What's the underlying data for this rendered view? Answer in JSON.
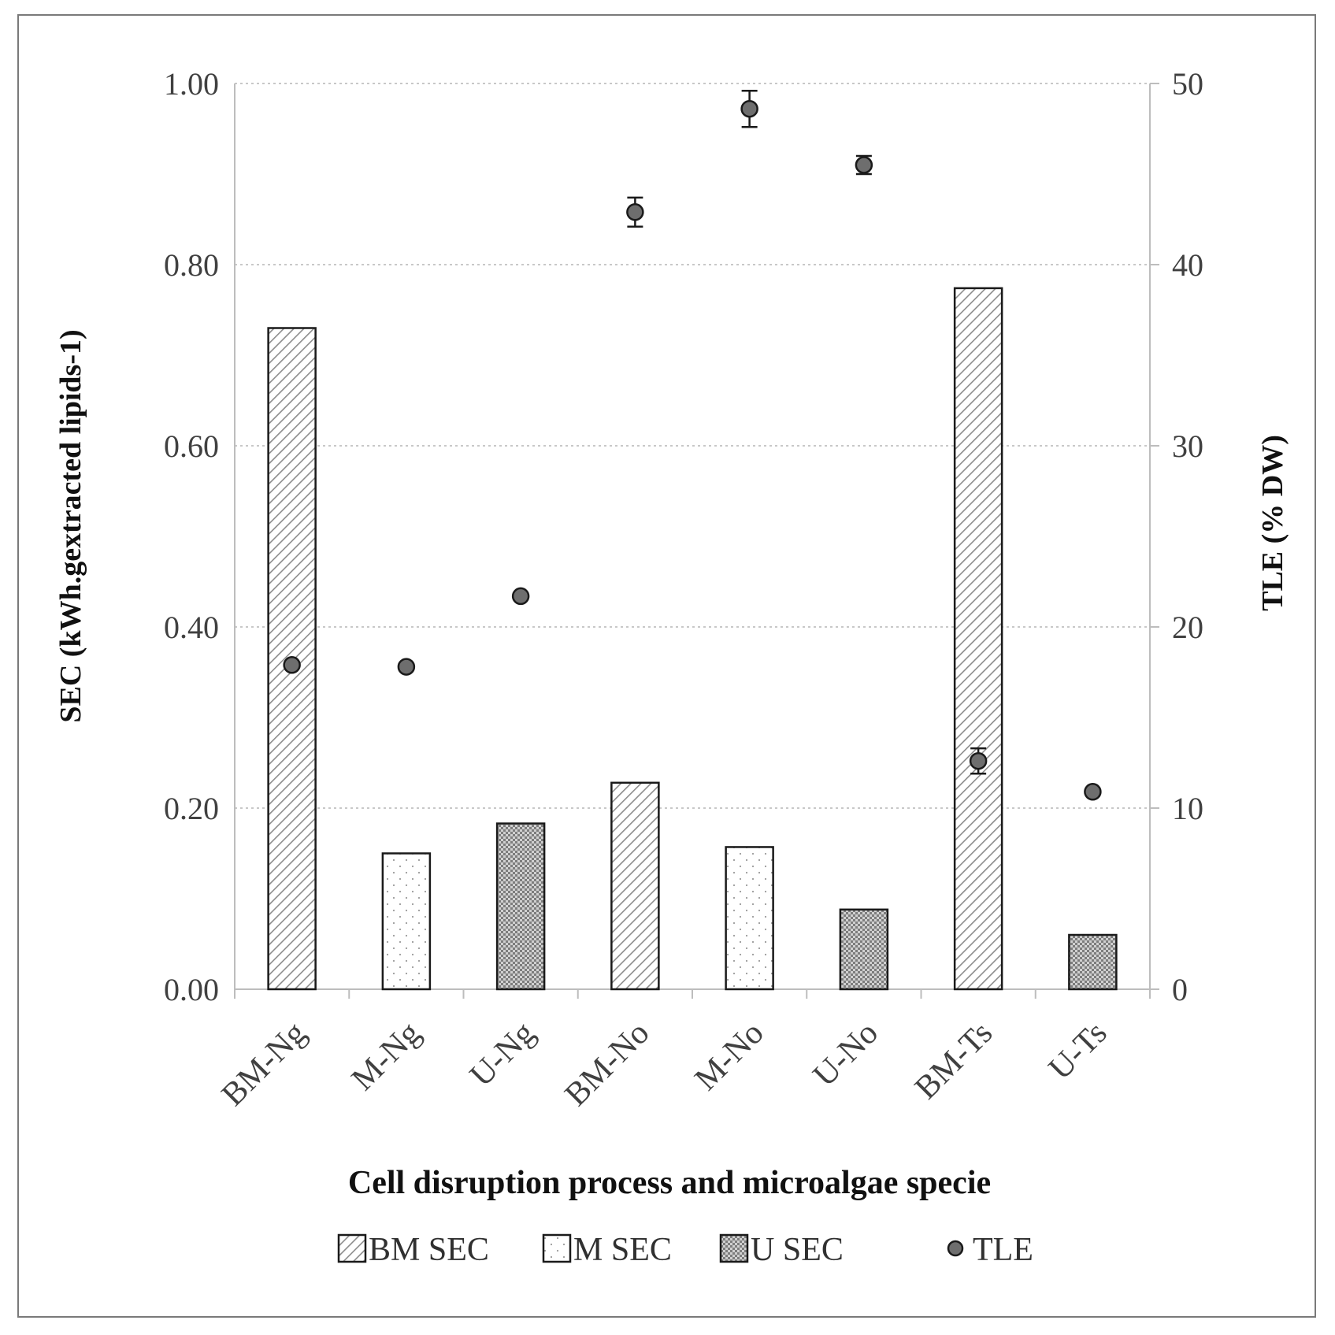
{
  "chart_data": {
    "type": "bar",
    "title": "",
    "xlabel": "Cell disruption process and microalgae specie",
    "ylabel": "SEC (kWh.gextracted lipids-1)",
    "y2label": "TLE (% DW)",
    "ylim": [
      0,
      1.0
    ],
    "y2lim": [
      0,
      50
    ],
    "yticks": [
      "0.00",
      "0.20",
      "0.40",
      "0.60",
      "0.80",
      "1.00"
    ],
    "y2ticks": [
      "0",
      "10",
      "20",
      "30",
      "40",
      "50"
    ],
    "grid": true,
    "categories": [
      "BM-Ng",
      "M-Ng",
      "U-Ng",
      "BM-No",
      "M-No",
      "U-No",
      "BM-Ts",
      "U-Ts"
    ],
    "bars": [
      {
        "category": "BM-Ng",
        "series": "BM SEC",
        "value": 0.73
      },
      {
        "category": "M-Ng",
        "series": "M SEC",
        "value": 0.15
      },
      {
        "category": "U-Ng",
        "series": "U SEC",
        "value": 0.183
      },
      {
        "category": "BM-No",
        "series": "BM SEC",
        "value": 0.228
      },
      {
        "category": "M-No",
        "series": "M SEC",
        "value": 0.157
      },
      {
        "category": "U-No",
        "series": "U SEC",
        "value": 0.088
      },
      {
        "category": "BM-Ts",
        "series": "BM SEC",
        "value": 0.774
      },
      {
        "category": "U-Ts",
        "series": "U SEC",
        "value": 0.06
      }
    ],
    "tle": {
      "name": "TLE",
      "axis": "right",
      "values": [
        17.9,
        17.8,
        21.7,
        42.9,
        48.6,
        45.5,
        12.6,
        10.9
      ],
      "errors": [
        0,
        0,
        0,
        0.8,
        1.0,
        0.5,
        0.7,
        0
      ]
    },
    "legend": {
      "position": "bottom",
      "items": [
        {
          "label": "BM SEC",
          "kind": "bar",
          "pattern": "hatch"
        },
        {
          "label": "M SEC",
          "kind": "bar",
          "pattern": "dots"
        },
        {
          "label": "U SEC",
          "kind": "bar",
          "pattern": "checker"
        },
        {
          "label": "TLE",
          "kind": "marker"
        }
      ]
    },
    "colors": {
      "bar_edge": "#1a1a1a",
      "hatch": "#8c8c8c",
      "dots": "#9a9a9a",
      "checker": "#7d7d7d",
      "marker_fill": "#6e6e6e",
      "marker_edge": "#1a1a1a",
      "grid": "#c8c8c8",
      "axis": "#bdbdbd"
    }
  }
}
